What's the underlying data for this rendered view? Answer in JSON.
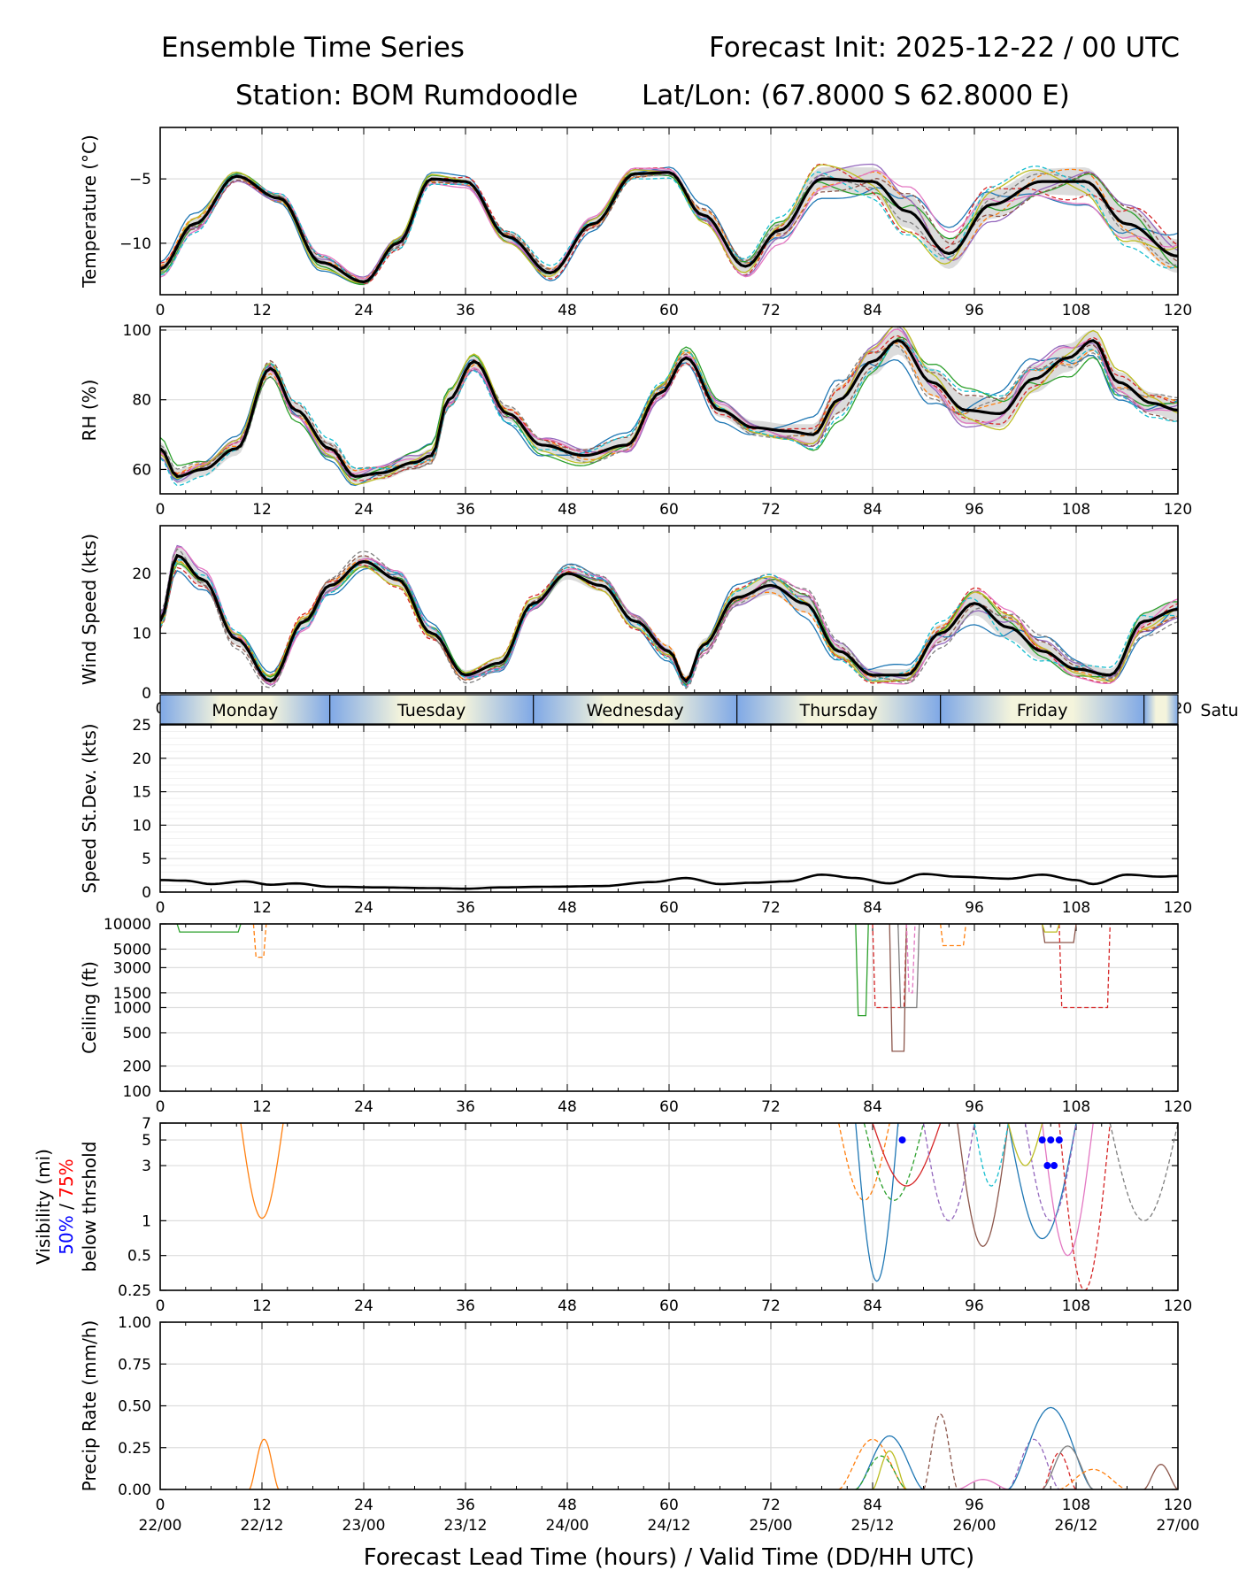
{
  "header": {
    "left_line1": "Ensemble Time Series",
    "right_line1": "Forecast Init: 2025-12-22 / 00 UTC",
    "station": "Station: BOM Rumdoodle",
    "latlon": "Lat/Lon: (67.8000 S 62.8000 E)"
  },
  "x_axis": {
    "label": "Forecast Lead Time (hours) / Valid Time (DD/HH UTC)",
    "lead_ticks": [
      "0",
      "12",
      "24",
      "36",
      "48",
      "60",
      "72",
      "84",
      "96",
      "108",
      "120"
    ],
    "valid_ticks": [
      "22/00",
      "22/12",
      "23/00",
      "23/12",
      "24/00",
      "24/12",
      "25/00",
      "25/12",
      "26/00",
      "26/12",
      "27/00"
    ],
    "xlim": [
      0,
      120
    ]
  },
  "day_bar": [
    "Monday",
    "Tuesday",
    "Wednesday",
    "Thursday",
    "Friday",
    "Satu"
  ],
  "vis_label": {
    "line1": "Visibility (mi)",
    "pct50": "50%",
    "sep": " / ",
    "pct75": "75%",
    "line3": "below thrshold"
  },
  "colors": {
    "mean": "#000000",
    "band": "#d3d3d3",
    "grid": "#dddddd",
    "day_a": "#f4f4dc",
    "day_b": "#7fa8e6",
    "p50": "#0000ff",
    "p75": "#ff0000"
  },
  "members": [
    "#1f77b4",
    "#ff7f0e",
    "#2ca02c",
    "#d62728",
    "#9467bd",
    "#8c564b",
    "#e377c2",
    "#7f7f7f",
    "#bcbd22",
    "#17becf"
  ],
  "chart_data": [
    {
      "type": "line",
      "id": "temp",
      "ylabel": "Temperature (°C)",
      "ylim": [
        -14,
        -1
      ],
      "yticks": [
        -10,
        -5
      ],
      "ytick_labels": [
        "−10",
        "−5"
      ],
      "x": [
        0,
        4,
        9,
        14,
        19,
        24,
        28,
        32,
        36,
        41,
        46,
        51,
        56,
        60,
        64,
        69,
        73,
        78,
        84,
        88,
        93,
        98,
        104,
        109,
        114,
        120
      ],
      "mean": [
        -12.0,
        -8.5,
        -4.8,
        -6.5,
        -11.5,
        -13.0,
        -10.0,
        -5.0,
        -5.2,
        -9.5,
        -12.3,
        -8.5,
        -4.6,
        -4.5,
        -7.8,
        -11.8,
        -9.0,
        -5.0,
        -5.2,
        -7.5,
        -10.8,
        -7.0,
        -5.2,
        -5.2,
        -8.5,
        -11.0
      ],
      "spread": [
        0.4,
        0.5,
        0.3,
        0.3,
        0.4,
        0.3,
        0.4,
        0.3,
        0.3,
        0.4,
        0.4,
        0.4,
        0.3,
        0.3,
        0.5,
        0.6,
        0.7,
        0.9,
        1.1,
        1.3,
        1.2,
        1.1,
        1.0,
        1.1,
        1.2,
        1.3
      ]
    },
    {
      "type": "line",
      "id": "rh",
      "ylabel": "RH (%)",
      "ylim": [
        53,
        101
      ],
      "yticks": [
        60,
        80,
        100
      ],
      "ytick_labels": [
        "60",
        "80",
        "100"
      ],
      "x": [
        0,
        2,
        5,
        9,
        13,
        16,
        20,
        23,
        26,
        30,
        32,
        34,
        37,
        41,
        45,
        50,
        55,
        59,
        62,
        66,
        70,
        74,
        77,
        80,
        84,
        87,
        91,
        95,
        99,
        103,
        107,
        110,
        113,
        117,
        120
      ],
      "mean": [
        66,
        58,
        60,
        66,
        89,
        77,
        66,
        58,
        59,
        62,
        64,
        80,
        91,
        76,
        67,
        64,
        67,
        82,
        92,
        77,
        72,
        71,
        70,
        80,
        91,
        97,
        85,
        77,
        76,
        86,
        92,
        97,
        85,
        79,
        77
      ],
      "spread": [
        2,
        2,
        2,
        2,
        2,
        2,
        2,
        2,
        2,
        2,
        2,
        2,
        2,
        2,
        2,
        2,
        2,
        2,
        2,
        2,
        2,
        2,
        3,
        4,
        4,
        4,
        4,
        4,
        4,
        4,
        4,
        3,
        3,
        3,
        3
      ]
    },
    {
      "type": "line",
      "id": "wind",
      "ylabel": "Wind Speed (kts)",
      "ylim": [
        0,
        28
      ],
      "yticks": [
        0,
        10,
        20
      ],
      "ytick_labels": [
        "0",
        "10",
        "20"
      ],
      "x": [
        0,
        2,
        5,
        9,
        13,
        17,
        20,
        24,
        28,
        32,
        36,
        40,
        44,
        48,
        52,
        56,
        60,
        62,
        64,
        68,
        72,
        76,
        80,
        84,
        88,
        92,
        96,
        100,
        104,
        108,
        112,
        116,
        120
      ],
      "mean": [
        12,
        23,
        19,
        9,
        2,
        12,
        18,
        22,
        19,
        10,
        3,
        5,
        15,
        20,
        18,
        12,
        7,
        2,
        8,
        16,
        18,
        15,
        7,
        3,
        3,
        10,
        15,
        11,
        7,
        4,
        3,
        12,
        14
      ],
      "spread": [
        1,
        1.5,
        1.2,
        1,
        0.8,
        1,
        1,
        1,
        1,
        1,
        0.8,
        0.8,
        1,
        1,
        1,
        1,
        1,
        0.8,
        1,
        1.2,
        1.5,
        1.5,
        1.2,
        1,
        1,
        1.5,
        2,
        2,
        1.5,
        1.2,
        1,
        1.5,
        1.5
      ]
    },
    {
      "type": "line",
      "id": "sd",
      "ylabel": "Speed St.Dev. (kts)",
      "ylim": [
        0,
        25
      ],
      "yticks": [
        0,
        5,
        10,
        15,
        20,
        25
      ],
      "ytick_labels": [
        "0",
        "5",
        "10",
        "15",
        "20",
        "25"
      ],
      "x": [
        0,
        3,
        6,
        10,
        13,
        16,
        20,
        26,
        32,
        36,
        40,
        46,
        52,
        58,
        62,
        66,
        70,
        74,
        78,
        82,
        86,
        90,
        94,
        100,
        104,
        108,
        110,
        114,
        118,
        120
      ],
      "values": [
        1.8,
        1.7,
        1.2,
        1.6,
        1.1,
        1.3,
        0.8,
        0.7,
        0.6,
        0.5,
        0.7,
        0.8,
        0.9,
        1.5,
        2.1,
        1.2,
        1.4,
        1.6,
        2.6,
        2.1,
        1.3,
        2.7,
        2.3,
        2.0,
        2.6,
        1.8,
        1.2,
        2.6,
        2.3,
        2.4
      ]
    },
    {
      "type": "line",
      "id": "ceil",
      "ylabel": "Ceiling (ft)",
      "yscale": "log",
      "ylim": [
        100,
        10000
      ],
      "yticks": [
        100,
        200,
        500,
        1000,
        1500,
        3000,
        5000,
        10000
      ],
      "ytick_labels": [
        "100",
        "200",
        "500",
        "1000",
        "1500",
        "3000",
        "5000",
        "10000"
      ]
    },
    {
      "type": "line",
      "id": "vis",
      "yscale": "log",
      "ylim": [
        0.25,
        7
      ],
      "yticks": [
        0.25,
        0.5,
        1,
        3,
        5,
        7
      ],
      "ytick_labels": [
        "0.25",
        "0.5",
        "1",
        "3",
        "5",
        "7"
      ],
      "p50_points": [
        [
          87.5,
          5
        ],
        [
          104,
          5
        ],
        [
          105,
          5
        ],
        [
          106,
          5
        ],
        [
          104.6,
          3
        ],
        [
          105.4,
          3
        ]
      ]
    },
    {
      "type": "line",
      "id": "precip",
      "ylabel": "Precip Rate (mm/h)",
      "ylim": [
        0,
        1
      ],
      "yticks": [
        0,
        0.25,
        0.5,
        0.75,
        1
      ],
      "ytick_labels": [
        "0.00",
        "0.25",
        "0.50",
        "0.75",
        "1.00"
      ]
    }
  ]
}
